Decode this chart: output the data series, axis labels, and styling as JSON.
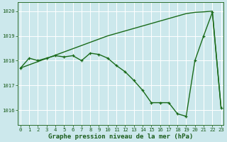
{
  "series1": {
    "x": [
      0,
      1,
      2,
      3,
      4,
      5,
      6,
      7,
      8,
      9,
      10,
      11,
      12,
      13,
      14,
      15,
      16,
      17,
      18,
      19,
      20,
      21,
      22,
      23
    ],
    "y": [
      1017.7,
      1017.83,
      1017.96,
      1018.09,
      1018.22,
      1018.35,
      1018.48,
      1018.61,
      1018.74,
      1018.87,
      1019.0,
      1019.1,
      1019.2,
      1019.3,
      1019.4,
      1019.5,
      1019.6,
      1019.7,
      1019.8,
      1019.9,
      1019.95,
      1019.97,
      1020.0,
      1016.1
    ],
    "color": "#1a6b1a",
    "linewidth": 1.0,
    "marker": null,
    "markersize": 0
  },
  "series2": {
    "x": [
      0,
      1,
      2,
      3,
      4,
      5,
      6,
      7,
      8,
      9,
      10,
      11,
      12,
      13,
      14,
      15,
      16,
      17,
      18,
      19,
      20,
      21,
      22,
      23
    ],
    "y": [
      1017.7,
      1018.1,
      1018.0,
      1018.1,
      1018.2,
      1018.15,
      1018.2,
      1018.0,
      1018.3,
      1018.25,
      1018.1,
      1017.8,
      1017.55,
      1017.2,
      1016.8,
      1016.3,
      1016.3,
      1016.3,
      1015.85,
      1015.75,
      1018.0,
      1019.0,
      1019.95,
      1016.1
    ],
    "color": "#1a6b1a",
    "linewidth": 1.0,
    "marker": "+",
    "markersize": 3.5
  },
  "ylim": [
    1015.4,
    1020.35
  ],
  "yticks": [
    1016,
    1017,
    1018,
    1019,
    1020
  ],
  "xlim": [
    -0.3,
    23.3
  ],
  "xticks": [
    0,
    1,
    2,
    3,
    4,
    5,
    6,
    7,
    8,
    9,
    10,
    11,
    12,
    13,
    14,
    15,
    16,
    17,
    18,
    19,
    20,
    21,
    22,
    23
  ],
  "xlabel": "Graphe pression niveau de la mer (hPa)",
  "bg_color": "#cce8ec",
  "grid_color": "#ffffff",
  "axis_color": "#2d6e2d",
  "tick_color": "#1a5c1a",
  "label_color": "#1a5c1a",
  "xlabel_fontsize": 6.5,
  "tick_fontsize": 5.2
}
